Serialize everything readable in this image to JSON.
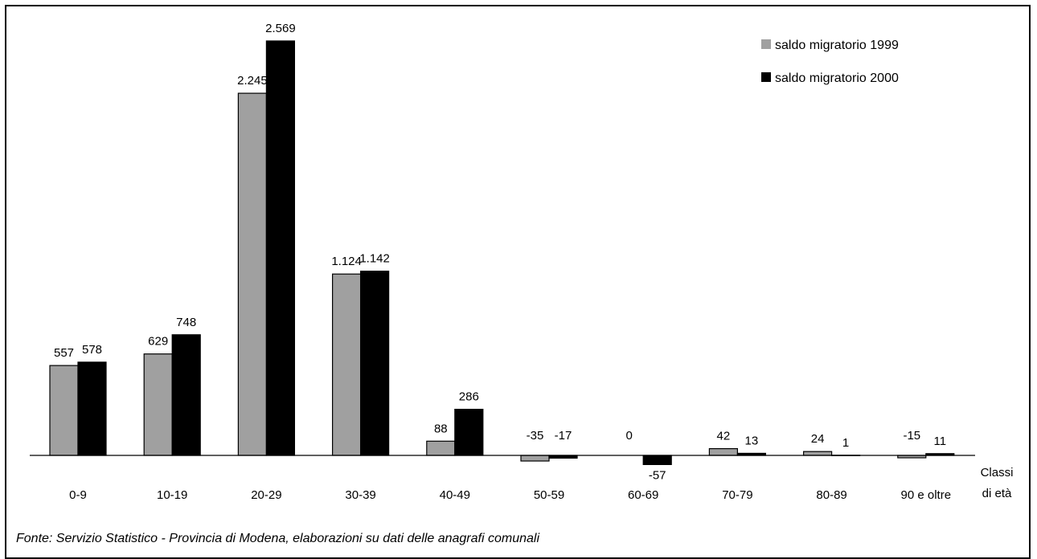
{
  "chart_data": {
    "type": "bar",
    "categories": [
      "0-9",
      "10-19",
      "20-29",
      "30-39",
      "40-49",
      "50-59",
      "60-69",
      "70-79",
      "80-89",
      "90 e oltre"
    ],
    "series": [
      {
        "name": "saldo migratorio 1999",
        "color": "#a0a0a0",
        "values": [
          557,
          629,
          2245,
          1124,
          88,
          -35,
          0,
          42,
          24,
          -15
        ],
        "labels": [
          "557",
          "629",
          "2.245",
          "1.124",
          "88",
          "-35",
          "0",
          "42",
          "24",
          "-15"
        ]
      },
      {
        "name": "saldo migratorio 2000",
        "color": "#000000",
        "values": [
          578,
          748,
          2569,
          1142,
          286,
          -17,
          -57,
          13,
          1,
          11
        ],
        "labels": [
          "578",
          "748",
          "2.569",
          "1.142",
          "286",
          "-17",
          "-57",
          "13",
          "1",
          "11"
        ]
      }
    ],
    "xlabel_line1": "Classi",
    "xlabel_line2": "di età",
    "ylim": [
      -60,
      2600
    ],
    "grid": false,
    "legend_position": "top-right",
    "source": "Fonte: Servizio Statistico - Provincia di Modena, elaborazioni su dati delle anagrafi comunali"
  }
}
